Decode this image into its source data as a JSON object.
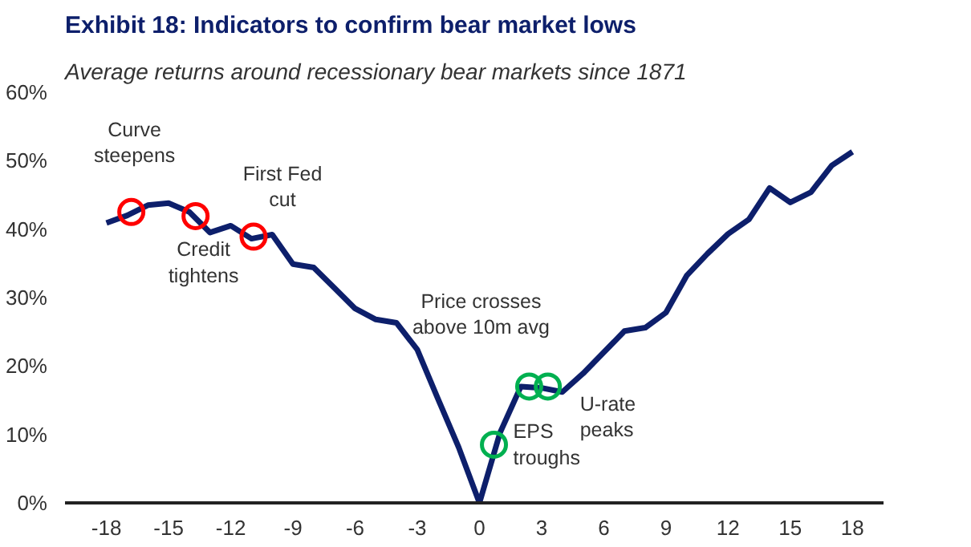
{
  "chart_data": {
    "type": "line",
    "title": "Exhibit 18: Indicators to confirm bear market lows",
    "subtitle": "Average returns around recessionary bear markets since 1871",
    "x": [
      -18,
      -17,
      -16,
      -15,
      -14,
      -13,
      -12,
      -11,
      -10,
      -9,
      -8,
      -7,
      -6,
      -5,
      -4,
      -3,
      -2,
      -1,
      0,
      1,
      2,
      3,
      4,
      5,
      6,
      7,
      8,
      9,
      10,
      11,
      12,
      13,
      14,
      15,
      16,
      17,
      18
    ],
    "series": [
      {
        "color": "#0d1f6b",
        "values": [
          40.9,
          42,
          43.5,
          43.8,
          42.5,
          39.5,
          40.5,
          38.6,
          39.2,
          34.9,
          34.4,
          31.4,
          28.4,
          26.8,
          26.3,
          22.4,
          15.2,
          8.1,
          0,
          10.3,
          17,
          16.8,
          16.2,
          18.9,
          22,
          25.1,
          25.6,
          27.8,
          33.2,
          36.4,
          39.3,
          41.4,
          46,
          43.9,
          45.4,
          49.3,
          51.3
        ]
      },
      {
        "type": "scatter",
        "marker": "circle",
        "x": [
          -16.8,
          -13.7,
          -10.9,
          0.7,
          2.4,
          3.3
        ],
        "values": [
          42.5,
          41.9,
          38.9,
          8.5,
          17,
          17
        ],
        "colors": [
          "#ff0000",
          "#ff0000",
          "#ff0000",
          "#00b050",
          "#00b050",
          "#00b050"
        ]
      }
    ],
    "annotations": [
      {
        "text": "Curve\nsteepens",
        "x": -16.8,
        "y": 42.5
      },
      {
        "text": "Credit\ntightens",
        "x": -13.7,
        "y": 41.9
      },
      {
        "text": "First Fed\ncut",
        "x": -10.9,
        "y": 38.9
      },
      {
        "text": "EPS\ntroughs",
        "x": 0.7,
        "y": 8.5
      },
      {
        "text": "Price crosses\nabove 10m avg",
        "x": 2.4,
        "y": 17
      },
      {
        "text": "U-rate\npeaks",
        "x": 3.3,
        "y": 17
      }
    ],
    "xlim": [
      -20,
      19.5
    ],
    "ylim": [
      0,
      60
    ],
    "xticks": [
      -18,
      -15,
      -12,
      -9,
      -6,
      -3,
      0,
      3,
      6,
      9,
      12,
      15,
      18
    ],
    "yticks": [
      {
        "value": 0,
        "label": "0%"
      },
      {
        "value": 10,
        "label": "10%"
      },
      {
        "value": 20,
        "label": "20%"
      },
      {
        "value": 30,
        "label": "30%"
      },
      {
        "value": 40,
        "label": "40%"
      },
      {
        "value": 50,
        "label": "50%"
      },
      {
        "value": 60,
        "label": "60%"
      }
    ],
    "grid": false
  }
}
